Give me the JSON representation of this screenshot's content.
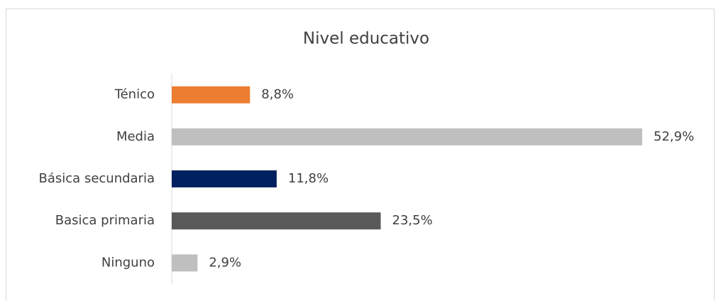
{
  "chart_data": {
    "type": "bar",
    "orientation": "horizontal",
    "title": "Nivel educativo",
    "categories": [
      "Ténico",
      "Media",
      "Básica secundaria",
      "Basica primaria",
      "Ninguno"
    ],
    "values": [
      8.8,
      52.9,
      11.8,
      23.5,
      2.9
    ],
    "value_labels": [
      "8,8%",
      "52,9%",
      "11,8%",
      "23,5%",
      "2,9%"
    ],
    "colors": [
      "#ed7d31",
      "#bfbfbf",
      "#002060",
      "#595959",
      "#bfbfbf"
    ]
  }
}
